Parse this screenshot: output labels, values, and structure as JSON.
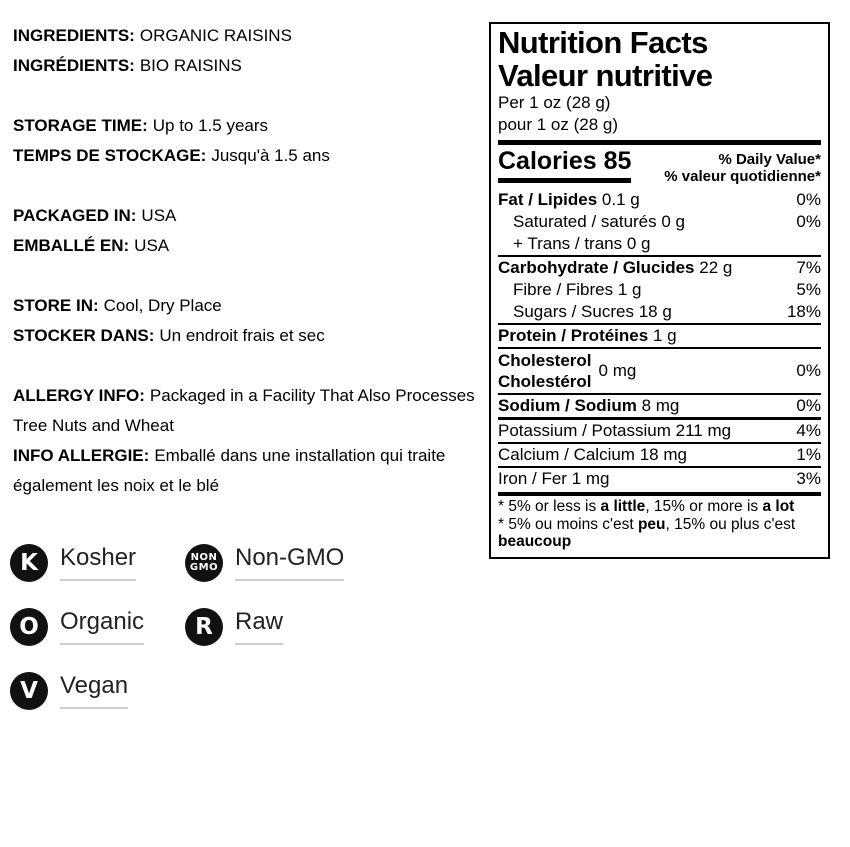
{
  "colors": {
    "background": "#ffffff",
    "text": "#000000",
    "badge_bg": "#111111",
    "badge_text": "#ffffff",
    "badge_underline": "#cccccc",
    "panel_border": "#000000"
  },
  "info": {
    "groups": [
      {
        "lines": [
          {
            "label": "INGREDIENTS:",
            "value": "ORGANIC RAISINS"
          },
          {
            "label": "INGRÉDIENTS:",
            "value": "BIO RAISINS"
          }
        ]
      },
      {
        "lines": [
          {
            "label": "STORAGE TIME:",
            "value": "Up to 1.5 years"
          },
          {
            "label": "TEMPS DE STOCKAGE:",
            "value": "Jusqu'à 1.5 ans"
          }
        ]
      },
      {
        "lines": [
          {
            "label": "PACKAGED IN:",
            "value": "USA"
          },
          {
            "label": "EMBALLÉ EN:",
            "value": "USA"
          }
        ]
      },
      {
        "lines": [
          {
            "label": "STORE IN:",
            "value": "Cool, Dry Place"
          },
          {
            "label": "STOCKER DANS:",
            "value": "Un endroit frais et sec"
          }
        ]
      },
      {
        "lines": [
          {
            "label": "ALLERGY INFO:",
            "value": "Packaged in a Facility That Also Processes Tree Nuts and Wheat"
          },
          {
            "label": "INFO ALLERGIE:",
            "value": "Emballé dans une installation qui traite également les noix et le blé"
          }
        ]
      }
    ]
  },
  "nutrition": {
    "title_en": "Nutrition Facts",
    "title_fr": "Valeur nutritive",
    "serving_en": "Per 1 oz (28 g)",
    "serving_fr": "pour 1 oz (28 g)",
    "calories_label": "Calories",
    "calories_value": "85",
    "dv_header_en": "% Daily Value*",
    "dv_header_fr": "% valeur quotidienne*",
    "rows": [
      {
        "name": "Fat / Lipides",
        "amount": "0.1 g",
        "dv": "0%"
      },
      {
        "name": "Saturated / saturés",
        "amount": "0 g",
        "dv": "0%"
      },
      {
        "name": "+ Trans / trans",
        "amount": "0 g",
        "dv": ""
      },
      {
        "name": "Carbohydrate / Glucides",
        "amount": "22 g",
        "dv": "7%"
      },
      {
        "name": "Fibre / Fibres",
        "amount": "1 g",
        "dv": "5%"
      },
      {
        "name": "Sugars / Sucres",
        "amount": "18 g",
        "dv": "18%"
      },
      {
        "name": "Protein / Protéines",
        "amount": "1 g",
        "dv": ""
      },
      {
        "name_en": "Cholesterol",
        "name_fr": "Cholestérol",
        "amount": "0 mg",
        "dv": "0%"
      },
      {
        "name": "Sodium / Sodium",
        "amount": "8 mg",
        "dv": "0%"
      },
      {
        "name": "Potassium / Potassium",
        "amount": "211 mg",
        "dv": "4%"
      },
      {
        "name": "Calcium / Calcium",
        "amount": "18 mg",
        "dv": "1%"
      },
      {
        "name": "Iron / Fer",
        "amount": "1 mg",
        "dv": "3%"
      }
    ],
    "footnote_en": {
      "t1": "* 5% or less is ",
      "b1": "a little",
      "t2": ", 15% or more is ",
      "b2": "a lot"
    },
    "footnote_fr": {
      "t1": "* 5% ou moins c'est ",
      "b1": "peu",
      "t2": ", 15% ou plus c'est",
      "b2": "beaucoup"
    }
  },
  "badges": [
    {
      "icon": "K",
      "label": "Kosher"
    },
    {
      "icon_line1": "NON",
      "icon_line2": "GMO",
      "label": "Non-GMO"
    },
    {
      "icon": "O",
      "label": "Organic"
    },
    {
      "icon": "R",
      "label": "Raw"
    },
    {
      "icon": "V",
      "label": "Vegan"
    }
  ]
}
